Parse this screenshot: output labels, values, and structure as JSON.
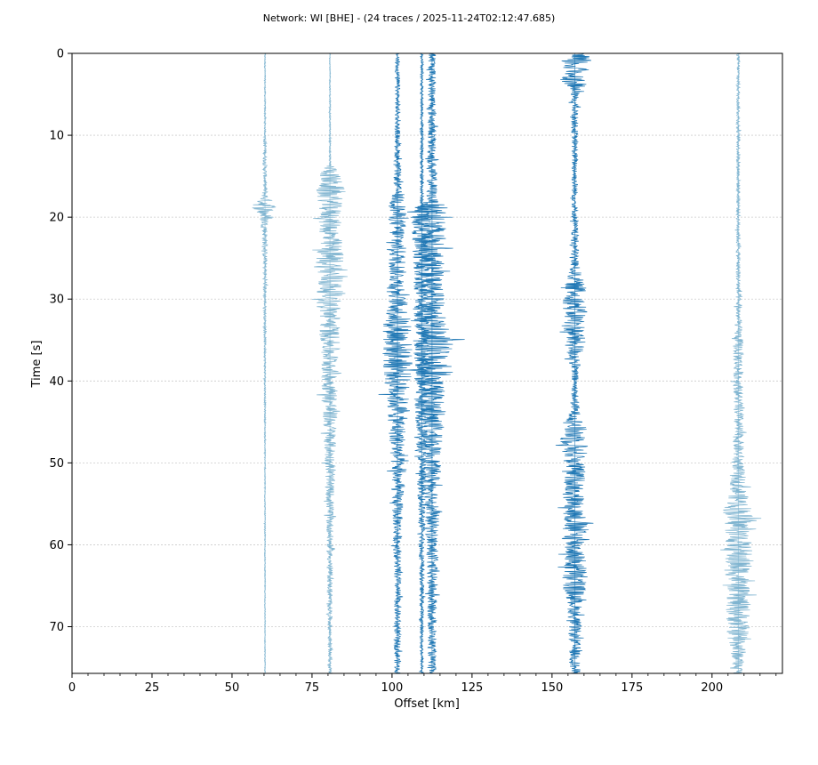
{
  "chart_data": {
    "type": "line",
    "title": "Network: WI [BHE] - (24 traces / 2025-11-24T02:12:47.685)",
    "xlabel": "Offset [km]",
    "ylabel": "Time [s]",
    "xlim": [
      0,
      222
    ],
    "ylim": [
      0,
      75.7
    ],
    "y_inverted": true,
    "grid": "horizontal dashed",
    "xticks": [
      0,
      25,
      50,
      75,
      100,
      125,
      150,
      175,
      200
    ],
    "yticks": [
      0,
      10,
      20,
      30,
      40,
      50,
      60,
      70
    ],
    "colors": {
      "dark": "#1f77b4",
      "light": "#7fb4d0",
      "grid": "#cccccc"
    },
    "series": [
      {
        "offset": 60.3,
        "shade": "light",
        "env": [
          [
            0,
            0.2
          ],
          [
            10,
            0.25
          ],
          [
            10.8,
            0.6
          ],
          [
            12,
            0.5
          ],
          [
            14,
            0.7
          ],
          [
            16,
            0.5
          ],
          [
            17.5,
            1.2
          ],
          [
            18.7,
            4.5
          ],
          [
            19.5,
            2.5
          ],
          [
            21,
            1.0
          ],
          [
            25,
            0.7
          ],
          [
            28,
            0.6
          ],
          [
            32,
            0.4
          ],
          [
            40,
            0.3
          ],
          [
            46,
            0.2
          ],
          [
            76,
            0.15
          ]
        ]
      },
      {
        "offset": 80.6,
        "shade": "light",
        "env": [
          [
            0,
            0.15
          ],
          [
            13.5,
            0.3
          ],
          [
            14.2,
            2.8
          ],
          [
            17,
            5
          ],
          [
            18,
            3.8
          ],
          [
            22,
            3.5
          ],
          [
            26,
            5
          ],
          [
            30,
            3.8
          ],
          [
            34,
            3.2
          ],
          [
            38,
            2.8
          ],
          [
            42,
            2.6
          ],
          [
            45,
            2.3
          ],
          [
            50,
            1.6
          ],
          [
            55,
            1.3
          ],
          [
            62,
            0.9
          ],
          [
            70,
            0.7
          ],
          [
            76,
            0.5
          ]
        ]
      },
      {
        "offset": 101.7,
        "shade": "dark",
        "env": [
          [
            0,
            0.8
          ],
          [
            10,
            0.8
          ],
          [
            17,
            1.3
          ],
          [
            18,
            2.8
          ],
          [
            24,
            2.8
          ],
          [
            30,
            2.8
          ],
          [
            33,
            4.5
          ],
          [
            37,
            5
          ],
          [
            41,
            4
          ],
          [
            45,
            3
          ],
          [
            50,
            2.3
          ],
          [
            55,
            1.8
          ],
          [
            60,
            1.3
          ],
          [
            65,
            1.1
          ],
          [
            76,
            1.0
          ]
        ]
      },
      {
        "offset": 109.3,
        "shade": "dark",
        "env": [
          [
            0,
            0.4
          ],
          [
            18.5,
            0.6
          ],
          [
            19,
            3
          ],
          [
            25,
            3.2
          ],
          [
            30,
            2.2
          ],
          [
            34,
            3
          ],
          [
            40,
            2.5
          ],
          [
            48,
            1.6
          ],
          [
            55,
            1.2
          ],
          [
            65,
            0.7
          ],
          [
            76,
            0.5
          ]
        ]
      },
      {
        "offset": 112.5,
        "shade": "dark",
        "env": [
          [
            0,
            1.2
          ],
          [
            10,
            1.3
          ],
          [
            18,
            1.8
          ],
          [
            19,
            6
          ],
          [
            22,
            4.5
          ],
          [
            28,
            3.5
          ],
          [
            33,
            4.5
          ],
          [
            35,
            7
          ],
          [
            38,
            5.5
          ],
          [
            42,
            4
          ],
          [
            48,
            3
          ],
          [
            55,
            2.4
          ],
          [
            62,
            1.8
          ],
          [
            70,
            1.4
          ],
          [
            76,
            1.2
          ]
        ]
      },
      {
        "offset": 157.1,
        "shade": "dark",
        "env": [
          [
            0,
            4.5
          ],
          [
            1,
            5.2
          ],
          [
            4,
            3.2
          ],
          [
            5,
            1.3
          ],
          [
            10,
            1.0
          ],
          [
            20,
            1.0
          ],
          [
            26,
            1.5
          ],
          [
            28,
            3
          ],
          [
            31,
            4
          ],
          [
            36,
            3.2
          ],
          [
            38.5,
            1.4
          ],
          [
            41,
            1.0
          ],
          [
            44,
            1.8
          ],
          [
            47,
            5
          ],
          [
            50,
            3.5
          ],
          [
            55,
            3.2
          ],
          [
            58,
            4.5
          ],
          [
            61,
            3.4
          ],
          [
            64,
            4.5
          ],
          [
            67,
            2.4
          ],
          [
            72,
            1.8
          ],
          [
            76,
            1.8
          ]
        ]
      },
      {
        "offset": 208.2,
        "shade": "light",
        "env": [
          [
            0,
            0.5
          ],
          [
            15,
            0.6
          ],
          [
            25,
            0.7
          ],
          [
            33,
            1.0
          ],
          [
            36,
            1.8
          ],
          [
            40,
            1.5
          ],
          [
            44,
            1.6
          ],
          [
            50,
            1.8
          ],
          [
            54,
            3
          ],
          [
            56,
            5
          ],
          [
            59,
            4
          ],
          [
            62,
            5
          ],
          [
            65,
            3.5
          ],
          [
            68,
            4
          ],
          [
            71,
            3.5
          ],
          [
            74,
            2
          ],
          [
            76,
            1.4
          ]
        ]
      }
    ]
  }
}
